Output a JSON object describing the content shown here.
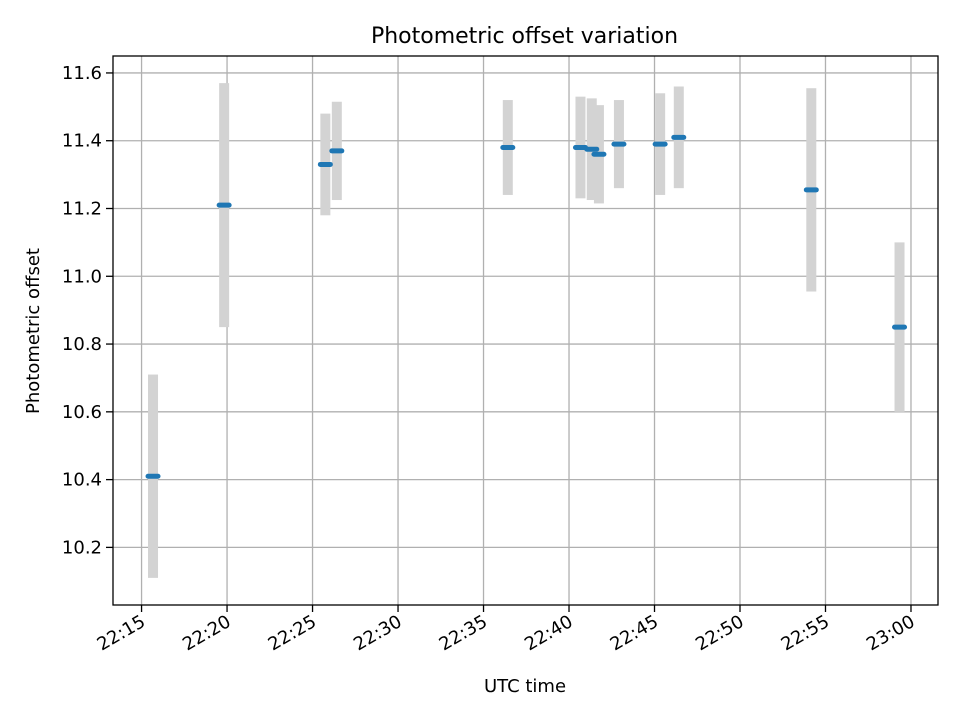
{
  "chart_data": {
    "type": "scatter",
    "title": "Photometric offset variation",
    "xlabel": "UTC time",
    "ylabel": "Photometric offset",
    "x_ticks": [
      "22:15",
      "22:20",
      "22:25",
      "22:30",
      "22:35",
      "22:40",
      "22:45",
      "22:50",
      "22:55",
      "23:00"
    ],
    "x_tick_minutes": [
      1335,
      1340,
      1345,
      1350,
      1355,
      1360,
      1365,
      1370,
      1375,
      1380
    ],
    "xlim": [
      "22:13:20",
      "23:01:35"
    ],
    "xlim_minutes": [
      1333.33,
      1381.58
    ],
    "y_ticks": [
      "10.2",
      "10.4",
      "10.6",
      "10.8",
      "11.0",
      "11.2",
      "11.4",
      "11.6"
    ],
    "ylim": [
      10.03,
      11.65
    ],
    "grid": true,
    "colors": {
      "marker": "#1f77b4",
      "errorbar": "#d3d3d3",
      "grid": "#b0b0b0"
    },
    "series": [
      {
        "x": [
          "22:15:40",
          "22:19:50",
          "22:25:45",
          "22:26:25",
          "22:36:25",
          "22:40:40",
          "22:41:20",
          "22:41:45",
          "22:42:55",
          "22:45:20",
          "22:46:25",
          "22:54:10",
          "22:59:20"
        ],
        "x_minutes": [
          1335.67,
          1339.83,
          1345.75,
          1346.42,
          1356.42,
          1360.67,
          1361.33,
          1361.75,
          1362.92,
          1365.33,
          1366.42,
          1374.17,
          1379.33
        ],
        "y": [
          10.41,
          11.21,
          11.33,
          11.37,
          11.38,
          11.38,
          11.375,
          11.36,
          11.39,
          11.39,
          11.41,
          11.255,
          10.85
        ],
        "yerr": [
          0.3,
          0.36,
          0.15,
          0.145,
          0.14,
          0.15,
          0.15,
          0.145,
          0.13,
          0.15,
          0.15,
          0.3,
          0.25
        ]
      }
    ]
  }
}
